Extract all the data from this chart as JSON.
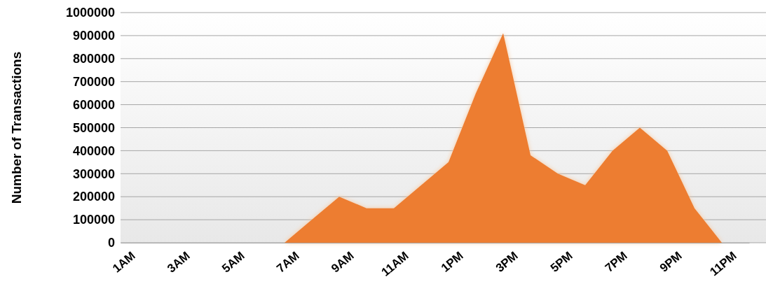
{
  "chart_data": {
    "type": "area",
    "ylabel": "Number of Transactions",
    "categories": [
      "1AM",
      null,
      "3AM",
      null,
      "5AM",
      null,
      "7AM",
      null,
      "9AM",
      null,
      "11AM",
      null,
      "1PM",
      null,
      "3PM",
      null,
      "5PM",
      null,
      "7PM",
      null,
      "9PM",
      null,
      "11PM",
      null
    ],
    "series": [
      {
        "color": "#ed7d31",
        "values": [
          0,
          0,
          0,
          0,
          0,
          0,
          0,
          100000,
          200000,
          150000,
          150000,
          250000,
          350000,
          650000,
          910000,
          380000,
          300000,
          250000,
          400000,
          500000,
          400000,
          150000,
          0,
          0
        ]
      }
    ],
    "ylim": [
      0,
      1000000
    ],
    "yticks": [
      0,
      100000,
      200000,
      300000,
      400000,
      500000,
      600000,
      700000,
      800000,
      900000,
      1000000
    ],
    "grid": "y"
  }
}
